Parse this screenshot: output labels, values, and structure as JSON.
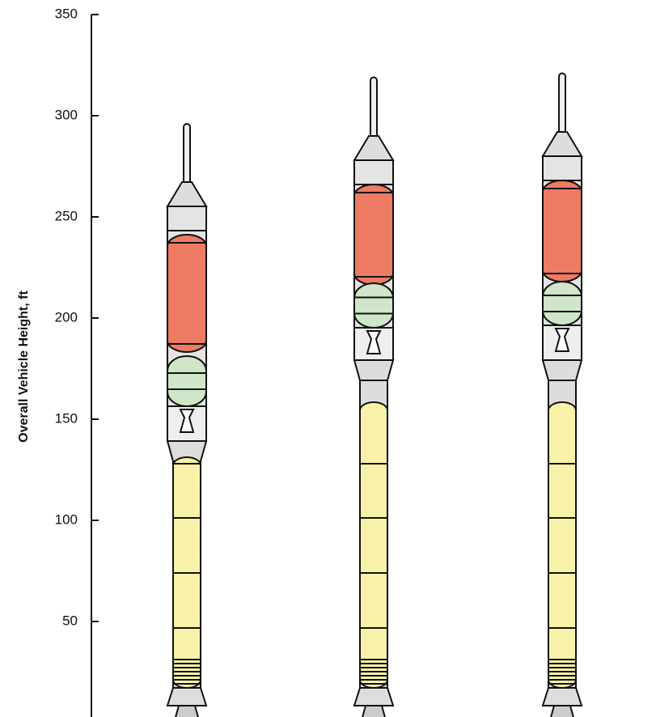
{
  "chart_data": {
    "type": "rocket",
    "y_label": "Overall Vehicle Height, ft",
    "categories": [
      null,
      null,
      null
    ],
    "values": [
      296,
      319,
      321
    ],
    "ylim": [
      0,
      350
    ],
    "yticks": [
      50,
      100,
      150,
      200,
      250,
      300,
      350
    ]
  }
}
